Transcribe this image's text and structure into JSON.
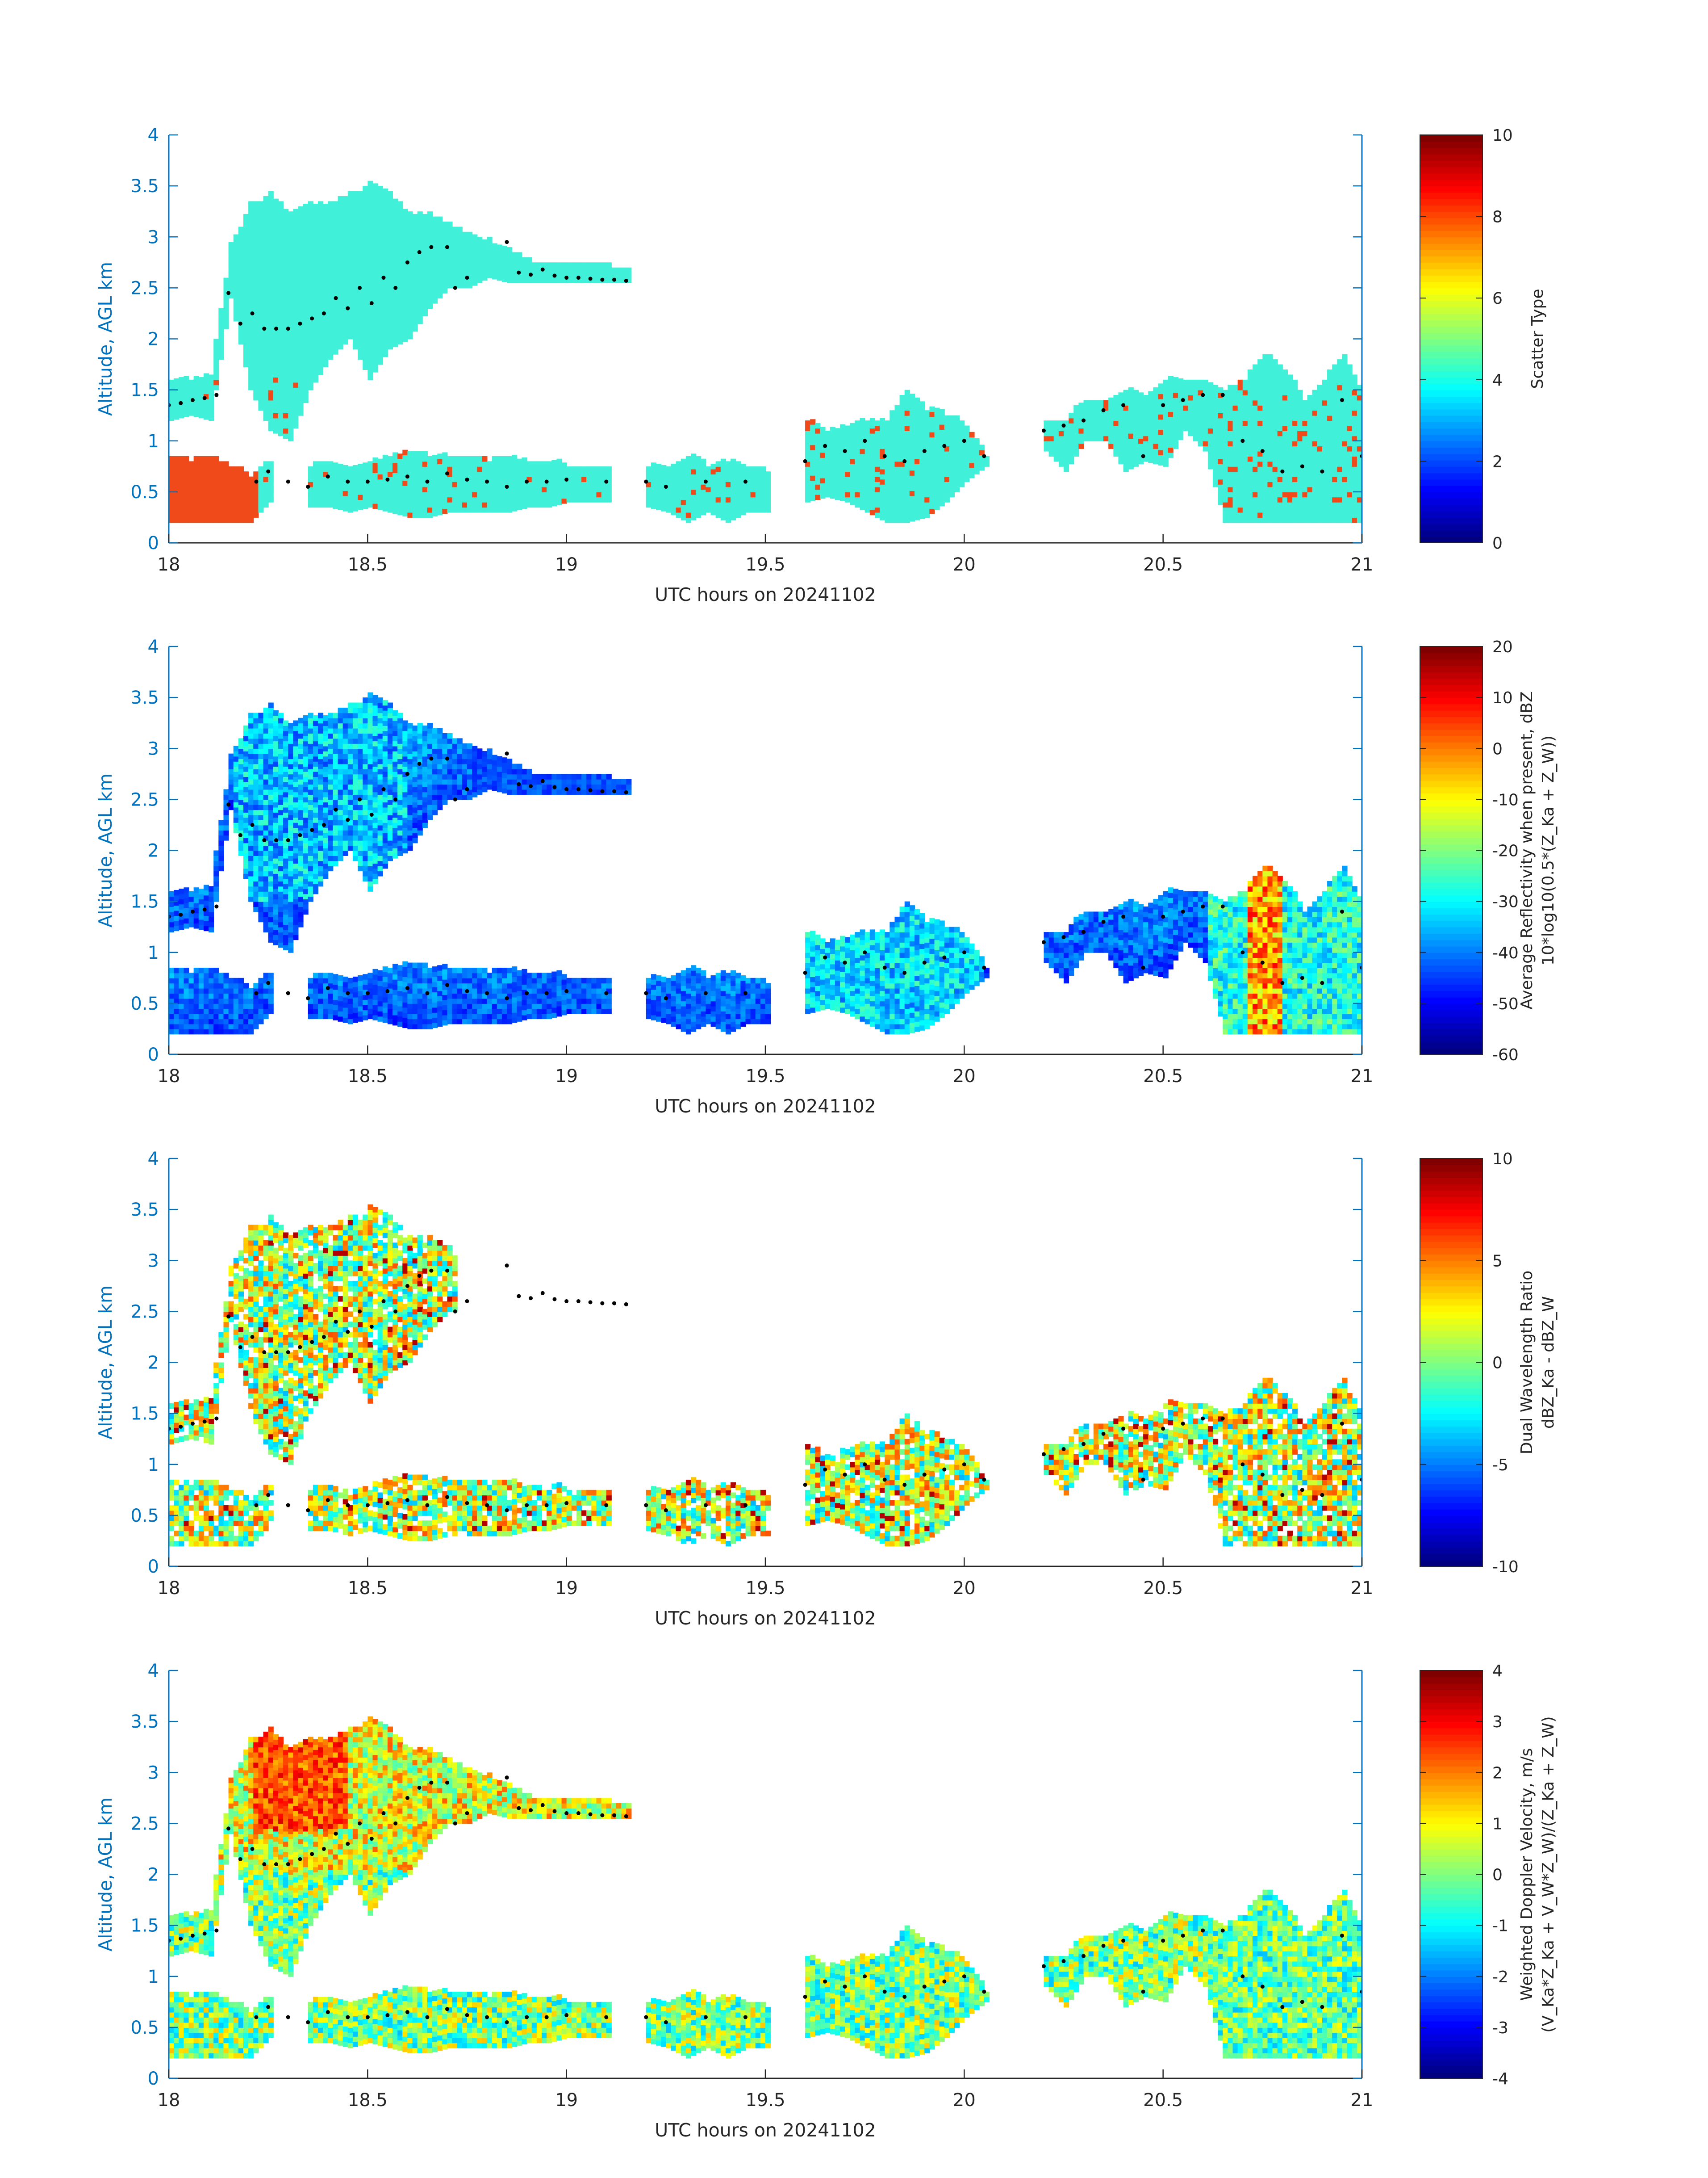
{
  "figure": {
    "background": "#ffffff",
    "axis_color": "#0072BD",
    "cloud_color": "#40F0D8",
    "precip_color": "#F04A1A"
  },
  "chart_data": [
    {
      "type": "heatmap",
      "xlabel": "UTC hours on 20241102",
      "ylabel": "Altitude, AGL km",
      "xlim": [
        18,
        21
      ],
      "ylim": [
        0,
        4
      ],
      "xticks": [
        "18",
        "18.5",
        "19",
        "19.5",
        "20",
        "20.5",
        "21"
      ],
      "yticks": [
        "0",
        "0.5",
        "1",
        "1.5",
        "2",
        "2.5",
        "3",
        "3.5",
        "4"
      ],
      "colorbar": {
        "label_lines": [
          "Scatter Type"
        ],
        "ticks": [
          "0",
          "2",
          "4",
          "6",
          "8",
          "10"
        ],
        "range": [
          0,
          10
        ]
      },
      "colormap": "jet",
      "legend": "colorbar-right",
      "grid": false
    },
    {
      "type": "heatmap",
      "xlabel": "UTC hours on 20241102",
      "ylabel": "Altitude, AGL km",
      "xlim": [
        18,
        21
      ],
      "ylim": [
        0,
        4
      ],
      "xticks": [
        "18",
        "18.5",
        "19",
        "19.5",
        "20",
        "20.5",
        "21"
      ],
      "yticks": [
        "0",
        "0.5",
        "1",
        "1.5",
        "2",
        "2.5",
        "3",
        "3.5",
        "4"
      ],
      "colorbar": {
        "label_lines": [
          "Average Reflectivity when present, dBZ",
          "10*log10(0.5*(Z_Ka + Z_W))"
        ],
        "ticks": [
          "-60",
          "-50",
          "-40",
          "-30",
          "-20",
          "-10",
          "0",
          "10",
          "20"
        ],
        "range": [
          -60,
          20
        ]
      },
      "colormap": "jet",
      "legend": "colorbar-right",
      "grid": false
    },
    {
      "type": "heatmap",
      "xlabel": "UTC hours on 20241102",
      "ylabel": "Altitude, AGL km",
      "xlim": [
        18,
        21
      ],
      "ylim": [
        0,
        4
      ],
      "xticks": [
        "18",
        "18.5",
        "19",
        "19.5",
        "20",
        "20.5",
        "21"
      ],
      "yticks": [
        "0",
        "0.5",
        "1",
        "1.5",
        "2",
        "2.5",
        "3",
        "3.5",
        "4"
      ],
      "colorbar": {
        "label_lines": [
          "Dual Wavelength Ratio",
          "dBZ_Ka - dBZ_W"
        ],
        "ticks": [
          "-10",
          "-5",
          "0",
          "5",
          "10"
        ],
        "range": [
          -10,
          10
        ]
      },
      "colormap": "jet",
      "legend": "colorbar-right",
      "grid": false
    },
    {
      "type": "heatmap",
      "xlabel": "UTC hours on 20241102",
      "ylabel": "Altitude, AGL km",
      "xlim": [
        18,
        21
      ],
      "ylim": [
        0,
        4
      ],
      "xticks": [
        "18",
        "18.5",
        "19",
        "19.5",
        "20",
        "20.5",
        "21"
      ],
      "yticks": [
        "0",
        "0.5",
        "1",
        "1.5",
        "2",
        "2.5",
        "3",
        "3.5",
        "4"
      ],
      "colorbar": {
        "label_lines": [
          "Weighted Doppler Velocity, m/s",
          "(V_Ka*Z_Ka + V_W*Z_W)/(Z_Ka + Z_W)"
        ],
        "ticks": [
          "-4",
          "-3",
          "-2",
          "-1",
          "0",
          "1",
          "2",
          "3",
          "4"
        ],
        "range": [
          -4,
          4
        ]
      },
      "colormap": "jet",
      "legend": "colorbar-right",
      "grid": false
    }
  ],
  "cloud_layers": {
    "upper": [
      [
        18.0,
        1.2,
        1.6
      ],
      [
        18.05,
        1.25,
        1.6
      ],
      [
        18.1,
        1.2,
        1.65
      ],
      [
        18.15,
        2.4,
        2.9
      ],
      [
        18.2,
        1.5,
        3.3
      ],
      [
        18.25,
        1.1,
        3.4
      ],
      [
        18.3,
        1.0,
        3.2
      ],
      [
        18.35,
        1.5,
        3.3
      ],
      [
        18.4,
        1.8,
        3.3
      ],
      [
        18.45,
        2.0,
        3.4
      ],
      [
        18.5,
        1.6,
        3.5
      ],
      [
        18.55,
        1.9,
        3.4
      ],
      [
        18.6,
        2.0,
        3.2
      ],
      [
        18.65,
        2.3,
        3.2
      ],
      [
        18.7,
        2.5,
        3.1
      ],
      [
        18.75,
        2.5,
        3.0
      ],
      [
        18.8,
        2.6,
        2.95
      ],
      [
        18.85,
        2.55,
        2.85
      ],
      [
        18.9,
        2.55,
        2.75
      ],
      [
        18.95,
        2.55,
        2.7
      ],
      [
        19.0,
        2.55,
        2.7
      ],
      [
        19.05,
        2.55,
        2.7
      ],
      [
        19.1,
        2.55,
        2.7
      ],
      [
        19.15,
        2.55,
        2.68
      ]
    ],
    "lower": [
      [
        18.0,
        0.2,
        0.85
      ],
      [
        18.05,
        0.2,
        0.8
      ],
      [
        18.1,
        0.2,
        0.85
      ],
      [
        18.15,
        0.2,
        0.75
      ],
      [
        18.2,
        0.2,
        0.65
      ],
      [
        18.25,
        0.4,
        0.8
      ],
      [
        18.35,
        0.35,
        0.75
      ],
      [
        18.4,
        0.35,
        0.8
      ],
      [
        18.45,
        0.3,
        0.75
      ],
      [
        18.5,
        0.35,
        0.8
      ],
      [
        18.55,
        0.3,
        0.85
      ],
      [
        18.6,
        0.25,
        0.9
      ],
      [
        18.65,
        0.25,
        0.85
      ],
      [
        18.7,
        0.3,
        0.85
      ],
      [
        18.75,
        0.3,
        0.85
      ],
      [
        18.8,
        0.3,
        0.8
      ],
      [
        18.85,
        0.3,
        0.85
      ],
      [
        18.9,
        0.35,
        0.8
      ],
      [
        18.95,
        0.35,
        0.8
      ],
      [
        19.0,
        0.4,
        0.75
      ],
      [
        19.05,
        0.4,
        0.75
      ],
      [
        19.1,
        0.4,
        0.75
      ],
      [
        19.2,
        0.35,
        0.75
      ],
      [
        19.25,
        0.3,
        0.75
      ],
      [
        19.3,
        0.2,
        0.85
      ],
      [
        19.35,
        0.3,
        0.75
      ],
      [
        19.4,
        0.2,
        0.8
      ],
      [
        19.45,
        0.3,
        0.75
      ],
      [
        19.5,
        0.3,
        0.7
      ],
      [
        19.6,
        0.4,
        1.2
      ],
      [
        19.65,
        0.45,
        1.1
      ],
      [
        19.7,
        0.4,
        1.15
      ],
      [
        19.75,
        0.3,
        1.2
      ],
      [
        19.8,
        0.2,
        1.2
      ],
      [
        19.85,
        0.2,
        1.5
      ],
      [
        19.9,
        0.25,
        1.3
      ],
      [
        19.95,
        0.4,
        1.25
      ],
      [
        20.0,
        0.6,
        1.15
      ],
      [
        20.05,
        0.75,
        0.85
      ],
      [
        20.2,
        0.9,
        1.2
      ],
      [
        20.25,
        0.7,
        1.2
      ],
      [
        20.3,
        1.0,
        1.4
      ],
      [
        20.35,
        1.0,
        1.4
      ],
      [
        20.4,
        0.7,
        1.5
      ],
      [
        20.45,
        0.8,
        1.45
      ],
      [
        20.5,
        0.75,
        1.6
      ],
      [
        20.55,
        1.1,
        1.6
      ],
      [
        20.6,
        0.9,
        1.6
      ],
      [
        20.65,
        0.2,
        1.5
      ],
      [
        20.7,
        0.2,
        1.6
      ],
      [
        20.75,
        0.2,
        1.85
      ],
      [
        20.8,
        0.2,
        1.7
      ],
      [
        20.85,
        0.2,
        1.4
      ],
      [
        20.9,
        0.2,
        1.6
      ],
      [
        20.95,
        0.2,
        1.85
      ],
      [
        21.0,
        0.2,
        1.4
      ]
    ]
  },
  "cloud_top_points": [
    [
      18.0,
      1.35
    ],
    [
      18.03,
      1.37
    ],
    [
      18.06,
      1.4
    ],
    [
      18.09,
      1.42
    ],
    [
      18.12,
      1.45
    ],
    [
      18.15,
      2.45
    ],
    [
      18.18,
      2.15
    ],
    [
      18.21,
      2.25
    ],
    [
      18.24,
      2.1
    ],
    [
      18.27,
      2.1
    ],
    [
      18.3,
      2.1
    ],
    [
      18.33,
      2.15
    ],
    [
      18.36,
      2.2
    ],
    [
      18.39,
      2.25
    ],
    [
      18.42,
      2.4
    ],
    [
      18.45,
      2.3
    ],
    [
      18.48,
      2.5
    ],
    [
      18.51,
      2.35
    ],
    [
      18.54,
      2.6
    ],
    [
      18.57,
      2.5
    ],
    [
      18.6,
      2.75
    ],
    [
      18.63,
      2.85
    ],
    [
      18.66,
      2.9
    ],
    [
      18.7,
      2.9
    ],
    [
      18.72,
      2.5
    ],
    [
      18.75,
      2.6
    ],
    [
      18.85,
      2.95
    ],
    [
      18.88,
      2.65
    ],
    [
      18.91,
      2.63
    ],
    [
      18.94,
      2.68
    ],
    [
      18.97,
      2.62
    ],
    [
      19.0,
      2.6
    ],
    [
      19.03,
      2.6
    ],
    [
      19.06,
      2.59
    ],
    [
      19.09,
      2.58
    ],
    [
      19.12,
      2.58
    ],
    [
      19.15,
      2.57
    ],
    [
      18.22,
      0.6
    ],
    [
      18.25,
      0.7
    ],
    [
      18.3,
      0.6
    ],
    [
      18.35,
      0.55
    ],
    [
      18.4,
      0.65
    ],
    [
      18.45,
      0.6
    ],
    [
      18.5,
      0.6
    ],
    [
      18.55,
      0.62
    ],
    [
      18.6,
      0.65
    ],
    [
      18.65,
      0.6
    ],
    [
      18.7,
      0.68
    ],
    [
      18.75,
      0.62
    ],
    [
      18.8,
      0.6
    ],
    [
      18.85,
      0.55
    ],
    [
      18.9,
      0.6
    ],
    [
      18.95,
      0.6
    ],
    [
      19.0,
      0.62
    ],
    [
      19.1,
      0.6
    ],
    [
      19.2,
      0.6
    ],
    [
      19.25,
      0.55
    ],
    [
      19.35,
      0.6
    ],
    [
      19.45,
      0.6
    ],
    [
      19.6,
      0.8
    ],
    [
      19.65,
      0.95
    ],
    [
      19.7,
      0.9
    ],
    [
      19.75,
      1.0
    ],
    [
      19.8,
      0.85
    ],
    [
      19.85,
      0.8
    ],
    [
      19.9,
      0.9
    ],
    [
      19.95,
      0.95
    ],
    [
      20.0,
      1.0
    ],
    [
      20.05,
      0.85
    ],
    [
      20.2,
      1.1
    ],
    [
      20.25,
      1.15
    ],
    [
      20.3,
      1.2
    ],
    [
      20.35,
      1.3
    ],
    [
      20.4,
      1.35
    ],
    [
      20.45,
      0.85
    ],
    [
      20.5,
      1.35
    ],
    [
      20.55,
      1.4
    ],
    [
      20.6,
      1.45
    ],
    [
      20.65,
      1.45
    ],
    [
      20.7,
      1.0
    ],
    [
      20.75,
      0.9
    ],
    [
      20.8,
      0.7
    ],
    [
      20.85,
      0.75
    ],
    [
      20.9,
      0.7
    ],
    [
      20.95,
      1.4
    ],
    [
      21.0,
      0.85
    ]
  ]
}
